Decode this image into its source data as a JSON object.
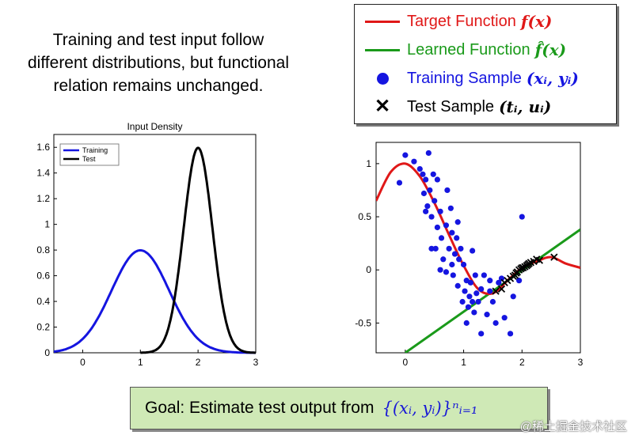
{
  "headline": [
    "Training and test input follow",
    "different distributions, but functional",
    "relation remains unchanged."
  ],
  "legend": {
    "target": {
      "label": "Target Function",
      "math": "f(x)",
      "color": "#e01818"
    },
    "learned": {
      "label": "Learned Function",
      "math": "f̂(x)",
      "color": "#1a9a1a"
    },
    "training": {
      "label": "Training Sample",
      "math": "(xᵢ, yᵢ)",
      "color": "#1515e0"
    },
    "test": {
      "label": "Test Sample",
      "math": "(tᵢ, uᵢ)",
      "color": "#000000"
    }
  },
  "goal": {
    "text": "Goal: Estimate test output from",
    "math": "{(xᵢ, yᵢ)}ⁿᵢ₌₁"
  },
  "watermark": "@稀土掘金技术社区",
  "chart_data": [
    {
      "type": "line",
      "title": "Input Density",
      "xlabel": "",
      "ylabel": "",
      "xlim": [
        -0.5,
        3
      ],
      "ylim": [
        0,
        1.7
      ],
      "xticks": [
        0,
        1,
        2,
        3
      ],
      "yticks": [
        0,
        0.2,
        0.4,
        0.6,
        0.8,
        1,
        1.2,
        1.4,
        1.6
      ],
      "legend_position": "top-left",
      "series": [
        {
          "name": "Training",
          "color": "#1515e0",
          "mean": 1.0,
          "std": 0.5,
          "x": [
            -0.5,
            -0.25,
            0,
            0.25,
            0.5,
            0.75,
            1,
            1.25,
            1.5,
            1.75,
            2,
            2.25,
            2.5,
            2.75,
            3
          ],
          "y": [
            0.009,
            0.035,
            0.108,
            0.259,
            0.484,
            0.704,
            0.798,
            0.704,
            0.484,
            0.259,
            0.108,
            0.035,
            0.009,
            0.002,
            0.0003
          ]
        },
        {
          "name": "Test",
          "color": "#000000",
          "mean": 2.0,
          "std": 0.25,
          "x": [
            1.0,
            1.25,
            1.5,
            1.75,
            2.0,
            2.25,
            2.5,
            2.75,
            3.0
          ],
          "y": [
            0.0005,
            0.018,
            0.216,
            0.968,
            1.596,
            0.968,
            0.216,
            0.018,
            0.0005
          ]
        }
      ]
    },
    {
      "type": "scatter",
      "title": "",
      "xlabel": "",
      "ylabel": "",
      "xlim": [
        -0.5,
        3
      ],
      "ylim": [
        -0.78,
        1.2
      ],
      "xticks": [
        0,
        1,
        2,
        3
      ],
      "yticks": [
        -0.5,
        0,
        0.5,
        1
      ],
      "lines": [
        {
          "name": "Target Function",
          "color": "#e01818",
          "x": [
            -0.5,
            -0.25,
            0,
            0.25,
            0.5,
            0.75,
            1,
            1.25,
            1.5,
            1.75,
            2,
            2.25,
            2.5,
            2.75,
            3
          ],
          "y": [
            0.65,
            0.92,
            1.0,
            0.88,
            0.63,
            0.33,
            0.04,
            -0.18,
            -0.22,
            -0.1,
            0.02,
            0.08,
            0.12,
            0.06,
            0.02
          ]
        },
        {
          "name": "Learned Function",
          "color": "#1a9a1a",
          "x": [
            0,
            3
          ],
          "y": [
            -0.78,
            0.38
          ]
        }
      ],
      "training_points": {
        "x": [
          -0.1,
          0,
          0.15,
          0.25,
          0.3,
          0.32,
          0.35,
          0.38,
          0.4,
          0.42,
          0.45,
          0.48,
          0.5,
          0.52,
          0.55,
          0.6,
          0.62,
          0.65,
          0.7,
          0.72,
          0.75,
          0.78,
          0.8,
          0.82,
          0.85,
          0.88,
          0.9,
          0.92,
          0.95,
          0.98,
          1,
          1.02,
          1.05,
          1.08,
          1.1,
          1.12,
          1.15,
          1.18,
          1.2,
          1.22,
          1.25,
          1.3,
          1.35,
          1.4,
          1.45,
          1.5,
          1.55,
          1.6,
          1.65,
          1.7,
          1.8,
          1.85,
          1.95,
          2,
          0.55,
          0.7,
          0.9,
          1.05,
          1.3,
          0.45,
          0.35,
          1.15,
          0.6,
          0.8,
          1.45
        ],
        "y": [
          0.82,
          1.08,
          1.02,
          0.95,
          0.9,
          0.72,
          0.85,
          0.6,
          1.1,
          0.75,
          0.5,
          0.9,
          0.65,
          0.2,
          0.4,
          0.55,
          0.3,
          0.1,
          0.42,
          0.75,
          0.2,
          0.58,
          0.35,
          -0.05,
          0.15,
          0.3,
          -0.15,
          0.1,
          0.2,
          -0.3,
          0.05,
          -0.2,
          -0.1,
          -0.35,
          -0.25,
          -0.12,
          0.18,
          -0.4,
          -0.05,
          -0.22,
          -0.3,
          -0.18,
          -0.05,
          -0.42,
          -0.1,
          -0.3,
          -0.5,
          -0.12,
          -0.08,
          -0.45,
          -0.6,
          -0.25,
          -0.1,
          0.5,
          0.85,
          -0.02,
          0.45,
          -0.5,
          -0.6,
          0.2,
          0.55,
          -0.3,
          0.0,
          0.05,
          -0.2
        ]
      },
      "test_points": {
        "x": [
          1.55,
          1.65,
          1.7,
          1.75,
          1.8,
          1.85,
          1.88,
          1.9,
          1.92,
          1.95,
          1.98,
          2.0,
          2.02,
          2.05,
          2.08,
          2.1,
          2.12,
          2.15,
          2.2,
          2.25,
          2.3,
          2.55
        ],
        "y": [
          -0.2,
          -0.18,
          -0.12,
          -0.1,
          -0.08,
          -0.06,
          -0.05,
          -0.03,
          -0.02,
          0.0,
          0.01,
          0.02,
          0.02,
          0.03,
          0.04,
          0.05,
          0.06,
          0.07,
          0.08,
          0.1,
          0.09,
          0.12
        ]
      }
    }
  ]
}
